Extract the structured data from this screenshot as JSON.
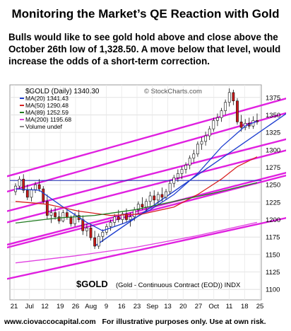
{
  "page": {
    "title": "Monitoring the Market’s QE Reaction with Gold",
    "subtitle": "Bulls would like to see gold hold above and close above the October 26th low of 1,328.50.  A move below that level, would increase the odds of a short-term correction.",
    "footer_url": "www.ciovaccocapital.com",
    "footer_text": "For illustrative purposes only.  Use at own risk."
  },
  "chart_data": {
    "type": "candlestick",
    "header": "$GOLD (Daily) 1340.30",
    "watermark": "© StockCharts.com",
    "ticker_label": "$GOLD",
    "ticker_desc": "(Gold - Continuous Contract (EOD)) INDX",
    "legend": [
      {
        "label": "MA(20) 1341.43",
        "color": "#1f3fd0"
      },
      {
        "label": "MA(50) 1290.48",
        "color": "#d82020"
      },
      {
        "label": "MA(89) 1252.59",
        "color": "#1f7a1f"
      },
      {
        "label": "MA(200) 1195.68",
        "color": "#e040e0"
      },
      {
        "label": "Volume undef",
        "color": "#888888"
      }
    ],
    "y_ticks": [
      1100,
      1125,
      1150,
      1175,
      1200,
      1225,
      1250,
      1275,
      1300,
      1325,
      1350,
      1375
    ],
    "ylim": [
      1085,
      1393
    ],
    "x_labels": [
      "21",
      "Jul",
      "12",
      "19",
      "26",
      "Aug",
      "9",
      "16",
      "23",
      "Sep",
      "13",
      "20",
      "27",
      "Oct",
      "11",
      "18",
      "25"
    ],
    "candles": [
      [
        1240,
        1252,
        1235,
        1248
      ],
      [
        1248,
        1262,
        1244,
        1258
      ],
      [
        1258,
        1265,
        1238,
        1242
      ],
      [
        1242,
        1250,
        1228,
        1232
      ],
      [
        1232,
        1246,
        1226,
        1243
      ],
      [
        1243,
        1254,
        1238,
        1250
      ],
      [
        1250,
        1258,
        1240,
        1244
      ],
      [
        1244,
        1248,
        1222,
        1226
      ],
      [
        1226,
        1236,
        1200,
        1206
      ],
      [
        1206,
        1216,
        1195,
        1210
      ],
      [
        1210,
        1218,
        1200,
        1204
      ],
      [
        1204,
        1212,
        1194,
        1198
      ],
      [
        1198,
        1214,
        1196,
        1210
      ],
      [
        1210,
        1215,
        1200,
        1203
      ],
      [
        1203,
        1206,
        1190,
        1194
      ],
      [
        1194,
        1210,
        1190,
        1206
      ],
      [
        1206,
        1214,
        1196,
        1200
      ],
      [
        1200,
        1206,
        1178,
        1184
      ],
      [
        1184,
        1194,
        1176,
        1188
      ],
      [
        1188,
        1194,
        1170,
        1174
      ],
      [
        1174,
        1184,
        1158,
        1162
      ],
      [
        1162,
        1180,
        1158,
        1176
      ],
      [
        1176,
        1186,
        1168,
        1182
      ],
      [
        1182,
        1194,
        1178,
        1190
      ],
      [
        1190,
        1200,
        1184,
        1196
      ],
      [
        1196,
        1208,
        1190,
        1204
      ],
      [
        1204,
        1214,
        1196,
        1200
      ],
      [
        1200,
        1212,
        1194,
        1208
      ],
      [
        1208,
        1216,
        1196,
        1200
      ],
      [
        1200,
        1210,
        1190,
        1204
      ],
      [
        1204,
        1218,
        1198,
        1214
      ],
      [
        1214,
        1226,
        1208,
        1222
      ],
      [
        1222,
        1232,
        1214,
        1218
      ],
      [
        1218,
        1230,
        1212,
        1226
      ],
      [
        1226,
        1240,
        1220,
        1234
      ],
      [
        1234,
        1242,
        1222,
        1228
      ],
      [
        1228,
        1240,
        1222,
        1236
      ],
      [
        1236,
        1246,
        1226,
        1232
      ],
      [
        1232,
        1244,
        1228,
        1240
      ],
      [
        1240,
        1256,
        1236,
        1252
      ],
      [
        1252,
        1264,
        1246,
        1260
      ],
      [
        1260,
        1272,
        1254,
        1266
      ],
      [
        1266,
        1276,
        1258,
        1272
      ],
      [
        1272,
        1282,
        1266,
        1278
      ],
      [
        1278,
        1292,
        1272,
        1288
      ],
      [
        1288,
        1300,
        1282,
        1294
      ],
      [
        1294,
        1312,
        1290,
        1308
      ],
      [
        1308,
        1318,
        1300,
        1312
      ],
      [
        1312,
        1326,
        1306,
        1320
      ],
      [
        1320,
        1334,
        1314,
        1330
      ],
      [
        1330,
        1346,
        1326,
        1342
      ],
      [
        1342,
        1352,
        1334,
        1346
      ],
      [
        1346,
        1360,
        1340,
        1356
      ],
      [
        1356,
        1372,
        1350,
        1368
      ],
      [
        1368,
        1388,
        1362,
        1382
      ],
      [
        1382,
        1386,
        1364,
        1370
      ],
      [
        1370,
        1374,
        1336,
        1340
      ],
      [
        1340,
        1350,
        1326,
        1332
      ],
      [
        1332,
        1344,
        1328,
        1338
      ],
      [
        1338,
        1346,
        1330,
        1334
      ],
      [
        1334,
        1348,
        1330,
        1342
      ],
      [
        1342,
        1352,
        1336,
        1340
      ]
    ],
    "series": [
      {
        "name": "MA(20) 1341.43",
        "color": "#1f3fd0",
        "values": [
          [
            0,
            1244
          ],
          [
            6,
            1242
          ],
          [
            12,
            1218
          ],
          [
            18,
            1196
          ],
          [
            22,
            1184
          ],
          [
            28,
            1196
          ],
          [
            34,
            1214
          ],
          [
            40,
            1236
          ],
          [
            46,
            1266
          ],
          [
            52,
            1304
          ],
          [
            58,
            1334
          ],
          [
            61,
            1341
          ]
        ]
      },
      {
        "name": "MA(50) 1290.48",
        "color": "#d82020",
        "values": [
          [
            0,
            1226
          ],
          [
            8,
            1222
          ],
          [
            16,
            1212
          ],
          [
            24,
            1206
          ],
          [
            32,
            1208
          ],
          [
            40,
            1218
          ],
          [
            46,
            1236
          ],
          [
            52,
            1258
          ],
          [
            56,
            1276
          ],
          [
            61,
            1290
          ]
        ]
      },
      {
        "name": "MA(89) 1252.59",
        "color": "#1f7a1f",
        "values": [
          [
            0,
            1195
          ],
          [
            10,
            1202
          ],
          [
            20,
            1206
          ],
          [
            30,
            1214
          ],
          [
            40,
            1226
          ],
          [
            50,
            1238
          ],
          [
            61,
            1253
          ]
        ]
      },
      {
        "name": "MA(200) 1195.68",
        "color": "#e040e0",
        "values": [
          [
            0,
            1138
          ],
          [
            15,
            1148
          ],
          [
            30,
            1160
          ],
          [
            45,
            1176
          ],
          [
            61,
            1196
          ]
        ]
      }
    ],
    "annotations": {
      "trend_channels": [
        [
          [
            0,
            1262
          ],
          [
            61,
            1368
          ]
        ],
        [
          [
            0,
            1240
          ],
          [
            61,
            1347
          ]
        ],
        [
          [
            0,
            1212
          ],
          [
            61,
            1310
          ]
        ],
        [
          [
            0,
            1196
          ],
          [
            61,
            1294
          ]
        ],
        [
          [
            0,
            1164
          ],
          [
            61,
            1262
          ]
        ],
        [
          [
            0,
            1160
          ],
          [
            61,
            1258
          ]
        ],
        [
          [
            0,
            1115
          ],
          [
            61,
            1198
          ]
        ],
        [
          [
            20,
            1162
          ],
          [
            61,
            1338
          ]
        ]
      ],
      "horizontal_line": 1256
    }
  }
}
